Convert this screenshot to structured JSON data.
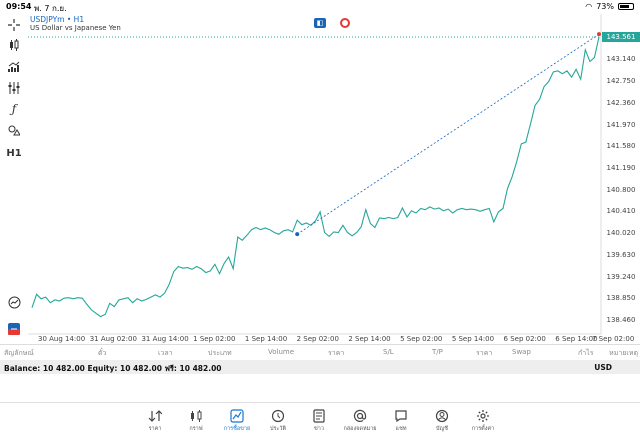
{
  "status": {
    "time": "09:54",
    "date": "พ. 7 ก.ย.",
    "battery": "73%"
  },
  "chart": {
    "symbol": "USDJPYm • H1",
    "name": "US Dollar vs Japanese Yen",
    "last_price": "143.561",
    "y_ticks": [
      "143.140",
      "142.750",
      "142.360",
      "141.970",
      "141.580",
      "141.190",
      "140.800",
      "140.410",
      "140.020",
      "139.630",
      "139.240",
      "138.850",
      "138.460"
    ],
    "x_ticks": [
      "30 Aug 14:00",
      "31 Aug 02:00",
      "31 Aug 14:00",
      "1 Sep 02:00",
      "1 Sep 14:00",
      "2 Sep 02:00",
      "2 Sep 14:00",
      "5 Sep 02:00",
      "5 Sep 14:00",
      "6 Sep 02:00",
      "6 Sep 14:00",
      "7 Sep 02:00"
    ],
    "line_color": "#26a69a"
  },
  "chart_data": {
    "type": "line",
    "title": "",
    "xlabel": "",
    "ylabel": "",
    "ylim": [
      138.3,
      143.9
    ],
    "series": [
      {
        "values": [
          138.7,
          138.94,
          138.86,
          138.89,
          138.79,
          138.84,
          138.82,
          138.87,
          138.88,
          138.86,
          138.88,
          138.87,
          138.76,
          138.66,
          138.6,
          138.54,
          138.58,
          138.78,
          138.72,
          138.84,
          138.86,
          138.88,
          138.79,
          138.86,
          138.82,
          138.85,
          138.89,
          138.93,
          138.89,
          138.96,
          139.12,
          139.35,
          139.44,
          139.41,
          139.42,
          139.39,
          139.44,
          139.4,
          139.33,
          139.36,
          139.48,
          139.31,
          139.49,
          139.61,
          139.4,
          139.97,
          139.91,
          140.0,
          140.1,
          140.14,
          140.1,
          140.13,
          140.1,
          140.05,
          140.02,
          140.08,
          140.1,
          140.06,
          140.27,
          140.19,
          140.22,
          140.18,
          140.26,
          140.42,
          140.05,
          139.98,
          140.06,
          140.05,
          140.18,
          140.05,
          139.99,
          140.05,
          140.15,
          140.46,
          140.21,
          140.14,
          140.31,
          140.3,
          140.32,
          140.3,
          140.32,
          140.49,
          140.33,
          140.44,
          140.4,
          140.48,
          140.46,
          140.51,
          140.47,
          140.49,
          140.44,
          140.47,
          140.4,
          140.46,
          140.48,
          140.46,
          140.47,
          140.46,
          140.43,
          140.46,
          140.48,
          140.24,
          140.42,
          140.48,
          140.84,
          141.05,
          141.32,
          141.64,
          141.67,
          141.99,
          142.33,
          142.44,
          142.67,
          142.76,
          142.93,
          142.95,
          142.9,
          142.95,
          142.84,
          142.98,
          142.8,
          143.33,
          143.12,
          143.19,
          143.56
        ]
      }
    ],
    "trendline": {
      "from_index": 58,
      "from_value": 140.02,
      "to_index": 124,
      "to_value": 143.61
    }
  },
  "trades_header": [
    "สัญลักษณ์",
    "ตั๋ว",
    "เวลา",
    "ประเภท",
    "Volume",
    "ราคา",
    "S/L",
    "T/P",
    "ราคา",
    "Swap",
    "กำไร",
    "หมายเหตุ"
  ],
  "balance": {
    "text": "Balance: 10 482.00 Equity: 10 482.00 ฟรี: 10 482.00",
    "currency": "USD"
  },
  "nav": [
    {
      "label": "ราคา",
      "icon": "quotes-icon"
    },
    {
      "label": "กราฟ",
      "icon": "chart-icon"
    },
    {
      "label": "การซื้อขาย",
      "icon": "trade-icon",
      "active": true
    },
    {
      "label": "ประวัติ",
      "icon": "history-icon"
    },
    {
      "label": "ข่าว",
      "icon": "news-icon"
    },
    {
      "label": "กล่องจดหมาย",
      "icon": "mailbox-icon"
    },
    {
      "label": "แชท",
      "icon": "chat-icon"
    },
    {
      "label": "บัญชี",
      "icon": "accounts-icon"
    },
    {
      "label": "การตั้งค่า",
      "icon": "settings-icon"
    }
  ]
}
